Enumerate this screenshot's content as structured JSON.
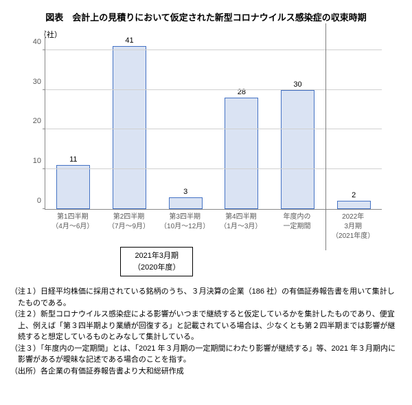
{
  "title": "図表　会計上の見積りにおいて仮定された新型コロナウイルス感染症の収束時期",
  "chart": {
    "type": "bar",
    "y_unit": "（社）",
    "ylim_max": 45,
    "ytick_step": 10,
    "yticks": [
      0,
      10,
      20,
      30,
      40
    ],
    "grid_color": "#d0d0d0",
    "axis_color": "#888888",
    "bar_fill": "#dae3f3",
    "bar_border": "#4472c4",
    "divider_after_index": 5,
    "divider_color": "#7f7f7f",
    "categories": [
      {
        "line1": "第1四半期",
        "line2": "（4月～6月）",
        "value": 11
      },
      {
        "line1": "第2四半期",
        "line2": "（7月～9月）",
        "value": 41
      },
      {
        "line1": "第3四半期",
        "line2": "（10月～12月）",
        "value": 3
      },
      {
        "line1": "第4四半期",
        "line2": "（1月～3月）",
        "value": 28
      },
      {
        "line1": "年度内の",
        "line2": "一定期間",
        "value": 30
      },
      {
        "line1": "2022年",
        "line2": "3月期",
        "line3": "（2021年度）",
        "value": 2
      }
    ]
  },
  "banner": {
    "line1": "2021年3月期",
    "line2": "（2020年度）"
  },
  "notes": [
    "（注１）日経平均株価に採用されている銘柄のうち、３月決算の企業（186 社）の有価証券報告書を用いて集計したものである。",
    "（注２）新型コロナウイルス感染症による影響がいつまで継続すると仮定しているかを集計したものであり、便宜上、例えば「第３四半期より業績が回復する」と記載されている場合は、少なくとも第２四半期までは影響が継続すると想定しているものとみなして集計している。",
    "（注３）「年度内の一定期間」とは、「2021 年３月期の一定期間にわたり影響が継続する」等、2021 年３月期内に影響があるが曖昧な記述である場合のことを指す。",
    "（出所）各企業の有価証券報告書より大和総研作成"
  ]
}
